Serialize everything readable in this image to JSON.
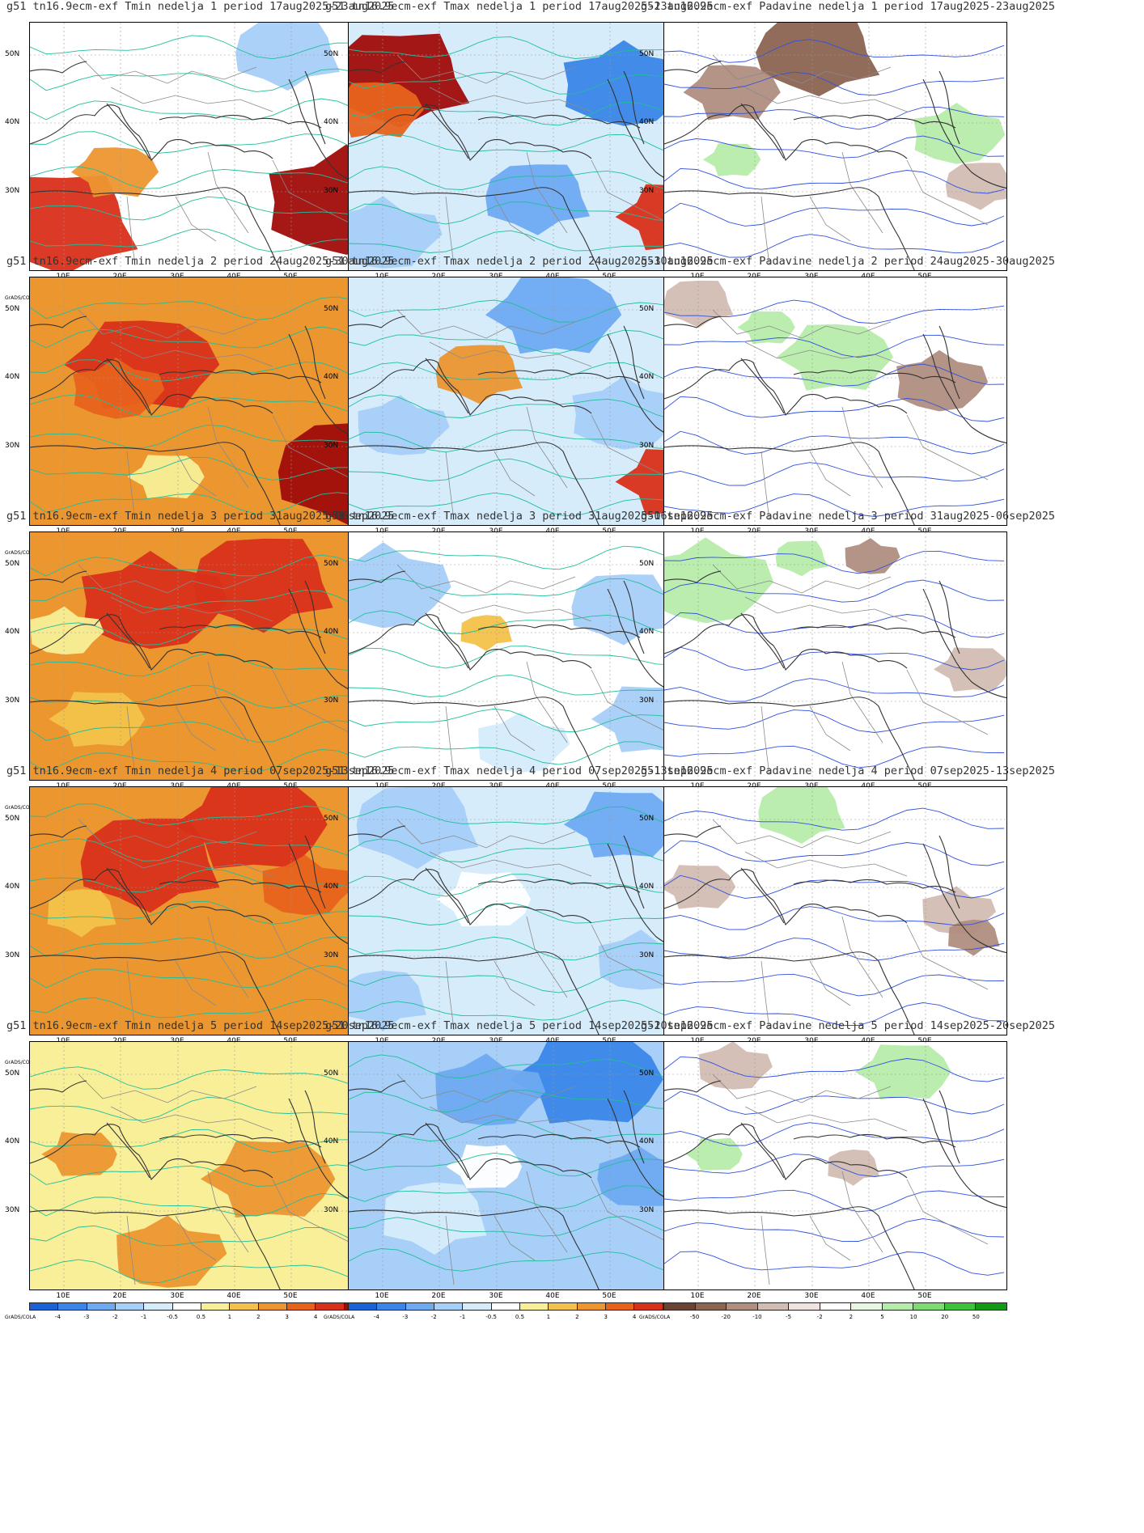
{
  "colors": {
    "temp_scale": [
      "#1b63d4",
      "#3a86e8",
      "#6eaaf2",
      "#a7cff8",
      "#d6ecfb",
      "#ffffff",
      "#f8ef98",
      "#f3c24a",
      "#ec9630",
      "#e8621c",
      "#d9301a",
      "#a00c0a"
    ],
    "precip_scale": [
      "#6b4332",
      "#8c6452",
      "#b08e80",
      "#d3bdb3",
      "#f0e4de",
      "#ffffff",
      "#e7f7e1",
      "#b6ecaa",
      "#7ddc6f",
      "#3cc33a",
      "#129a15"
    ],
    "contour_temp": "#1fbf9a",
    "contour_precip": "#3050e0",
    "coast": "#333333",
    "border": "#8a8a8a"
  },
  "map_axes": {
    "lat_labels": [
      "50N",
      "40N",
      "30N"
    ],
    "lon_labels": [
      "10E",
      "20E",
      "30E",
      "40E",
      "50E"
    ]
  },
  "colorbar": {
    "source_label": "GrADS/COLA",
    "temp_ticks": [
      "-4",
      "-3",
      "-2",
      "-1",
      "-0.5",
      "0.5",
      "1",
      "2",
      "3",
      "4"
    ],
    "precip_ticks": [
      "-50",
      "-20",
      "-10",
      "-5",
      "-2",
      "2",
      "5",
      "10",
      "20",
      "50"
    ]
  },
  "weeks": [
    {
      "tmin_title": "g51 tn16.9ecm-exf Tmin nedelja 1 period 17aug2025-23aug2025",
      "tmax_title": "g51 tn16.9ecm-exf Tmax nedelja 1 period 17aug2025-23aug2025",
      "precip_title": "g51 tn16.9ecm-exf Padavine nedelja 1 period 17aug2025-23aug2025",
      "tmin_bg": 5,
      "tmin_blobs": [
        [
          10,
          10,
          80,
          0.85
        ],
        [
          8,
          25,
          60,
          0.45
        ],
        [
          11,
          92,
          72,
          0.9
        ],
        [
          3,
          75,
          12,
          0.6
        ]
      ],
      "tmax_bg": 4,
      "tmax_blobs": [
        [
          11,
          15,
          22,
          0.8
        ],
        [
          9,
          8,
          35,
          0.5
        ],
        [
          1,
          80,
          25,
          0.7
        ],
        [
          2,
          55,
          70,
          0.6
        ],
        [
          10,
          95,
          78,
          0.6
        ],
        [
          3,
          10,
          85,
          0.6
        ]
      ],
      "precip_bg": 5,
      "precip_blobs": [
        [
          1,
          45,
          12,
          0.7
        ],
        [
          2,
          20,
          28,
          0.5
        ],
        [
          7,
          85,
          45,
          0.5
        ],
        [
          3,
          92,
          65,
          0.4
        ],
        [
          7,
          20,
          55,
          0.3
        ]
      ]
    },
    {
      "tmin_title": "g51 tn16.9ecm-exf Tmin nedelja 2 period 24aug2025-30aug2025",
      "tmax_title": "g51 tn16.9ecm-exf Tmax nedelja 2 period 24aug2025-30aug2025",
      "precip_title": "g51 tn16.9ecm-exf Padavine nedelja 2 period 24aug2025-30aug2025",
      "tmin_bg": 8,
      "tmin_blobs": [
        [
          10,
          33,
          35,
          0.8
        ],
        [
          9,
          25,
          45,
          0.5
        ],
        [
          11,
          95,
          78,
          0.9
        ],
        [
          6,
          40,
          80,
          0.4
        ]
      ],
      "tmax_bg": 4,
      "tmax_blobs": [
        [
          2,
          60,
          15,
          0.7
        ],
        [
          3,
          80,
          55,
          0.6
        ],
        [
          8,
          38,
          38,
          0.5
        ],
        [
          10,
          95,
          82,
          0.6
        ],
        [
          3,
          15,
          60,
          0.5
        ]
      ],
      "precip_bg": 5,
      "precip_blobs": [
        [
          7,
          50,
          32,
          0.6
        ],
        [
          2,
          80,
          42,
          0.5
        ],
        [
          3,
          10,
          10,
          0.4
        ],
        [
          7,
          30,
          20,
          0.3
        ]
      ]
    },
    {
      "tmin_title": "g51 tn16.9ecm-exf Tmin nedelja 3 period 31aug2025-06sep2025",
      "tmax_title": "g51 tn16.9ecm-exf Tmax nedelja 3 period 31aug2025-06sep2025",
      "precip_title": "g51 tn16.9ecm-exf Padavine nedelja 3 period 31aug2025-06sep2025",
      "tmin_bg": 8,
      "tmin_blobs": [
        [
          10,
          35,
          28,
          0.8
        ],
        [
          10,
          68,
          20,
          0.8
        ],
        [
          7,
          20,
          75,
          0.5
        ],
        [
          6,
          10,
          40,
          0.4
        ]
      ],
      "tmax_bg": 5,
      "tmax_blobs": [
        [
          3,
          10,
          22,
          0.7
        ],
        [
          3,
          80,
          30,
          0.6
        ],
        [
          3,
          88,
          75,
          0.6
        ],
        [
          4,
          50,
          85,
          0.5
        ],
        [
          7,
          40,
          40,
          0.3
        ]
      ],
      "precip_bg": 5,
      "precip_blobs": [
        [
          7,
          12,
          20,
          0.7
        ],
        [
          7,
          40,
          10,
          0.3
        ],
        [
          3,
          90,
          55,
          0.4
        ],
        [
          2,
          60,
          10,
          0.3
        ]
      ]
    },
    {
      "tmin_title": "g51 tn16.9ecm-exf Tmin nedelja 4 period 07sep2025-13sep2025",
      "tmax_title": "g51 tn16.9ecm-exf Tmax nedelja 4 period 07sep2025-13sep2025",
      "precip_title": "g51 tn16.9ecm-exf Padavine nedelja 4 period 07sep2025-13sep2025",
      "tmin_bg": 8,
      "tmin_blobs": [
        [
          10,
          35,
          30,
          0.8
        ],
        [
          10,
          65,
          15,
          0.8
        ],
        [
          9,
          80,
          40,
          0.5
        ],
        [
          7,
          15,
          50,
          0.4
        ]
      ],
      "tmax_bg": 4,
      "tmax_blobs": [
        [
          3,
          20,
          15,
          0.7
        ],
        [
          2,
          80,
          15,
          0.6
        ],
        [
          3,
          85,
          70,
          0.5
        ],
        [
          3,
          10,
          85,
          0.5
        ],
        [
          5,
          40,
          45,
          0.5
        ]
      ],
      "precip_bg": 5,
      "precip_blobs": [
        [
          7,
          40,
          10,
          0.5
        ],
        [
          3,
          10,
          40,
          0.4
        ],
        [
          3,
          85,
          50,
          0.4
        ],
        [
          2,
          90,
          60,
          0.3
        ]
      ]
    },
    {
      "tmin_title": "g51 tn16.9ecm-exf Tmin nedelja 5 period 14sep2025-20sep2025",
      "tmax_title": "g51 tn16.9ecm-exf Tmax nedelja 5 period 14sep2025-20sep2025",
      "precip_title": "g51 tn16.9ecm-exf Padavine nedelja 5 period 14sep2025-20sep2025",
      "tmin_bg": 6,
      "tmin_blobs": [
        [
          8,
          70,
          55,
          0.7
        ],
        [
          8,
          40,
          85,
          0.6
        ],
        [
          6,
          15,
          20,
          0.4
        ],
        [
          8,
          15,
          45,
          0.4
        ]
      ],
      "tmax_bg": 3,
      "tmax_blobs": [
        [
          1,
          70,
          15,
          0.8
        ],
        [
          2,
          40,
          20,
          0.6
        ],
        [
          4,
          25,
          70,
          0.6
        ],
        [
          5,
          40,
          50,
          0.4
        ],
        [
          2,
          85,
          55,
          0.5
        ]
      ],
      "precip_bg": 5,
      "precip_blobs": [
        [
          7,
          70,
          12,
          0.5
        ],
        [
          3,
          20,
          10,
          0.4
        ],
        [
          3,
          55,
          50,
          0.3
        ],
        [
          7,
          15,
          45,
          0.3
        ]
      ]
    }
  ]
}
